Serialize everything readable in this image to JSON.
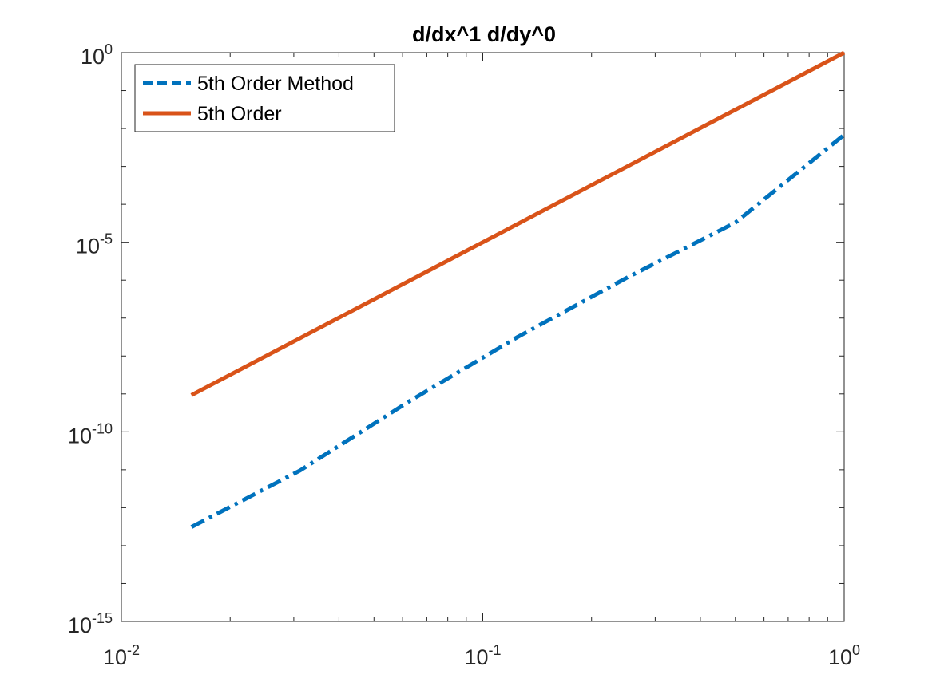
{
  "chart_data": {
    "type": "line",
    "title": "d/dx^1 d/dy^0",
    "xlabel": "",
    "ylabel": "",
    "xscale": "log",
    "yscale": "log",
    "xlim": [
      0.01,
      1
    ],
    "ylim": [
      1e-15,
      1
    ],
    "grid": false,
    "legend_position": "top-left",
    "x_ticks": [
      {
        "value": 0.01,
        "base": "10",
        "exp": "-2"
      },
      {
        "value": 0.1,
        "base": "10",
        "exp": "-1"
      },
      {
        "value": 1,
        "base": "10",
        "exp": "0"
      }
    ],
    "y_ticks": [
      {
        "value": 1,
        "base": "10",
        "exp": "0"
      },
      {
        "value": 1e-05,
        "base": "10",
        "exp": "-5"
      },
      {
        "value": 1e-10,
        "base": "10",
        "exp": "-10"
      },
      {
        "value": 1e-15,
        "base": "10",
        "exp": "-15"
      }
    ],
    "series": [
      {
        "name": "5th Order Method",
        "color": "#0072BD",
        "style": "dash-dot",
        "x": [
          0.015625,
          0.03125,
          0.0625,
          0.125,
          0.25,
          0.5,
          1
        ],
        "y": [
          3.1e-13,
          9.6e-12,
          6.3e-10,
          3.2e-08,
          1.15e-06,
          3.3e-05,
          0.0068
        ]
      },
      {
        "name": "5th Order",
        "color": "#D95319",
        "style": "solid",
        "x": [
          0.015625,
          1
        ],
        "y": [
          9.3e-10,
          1
        ]
      }
    ]
  }
}
